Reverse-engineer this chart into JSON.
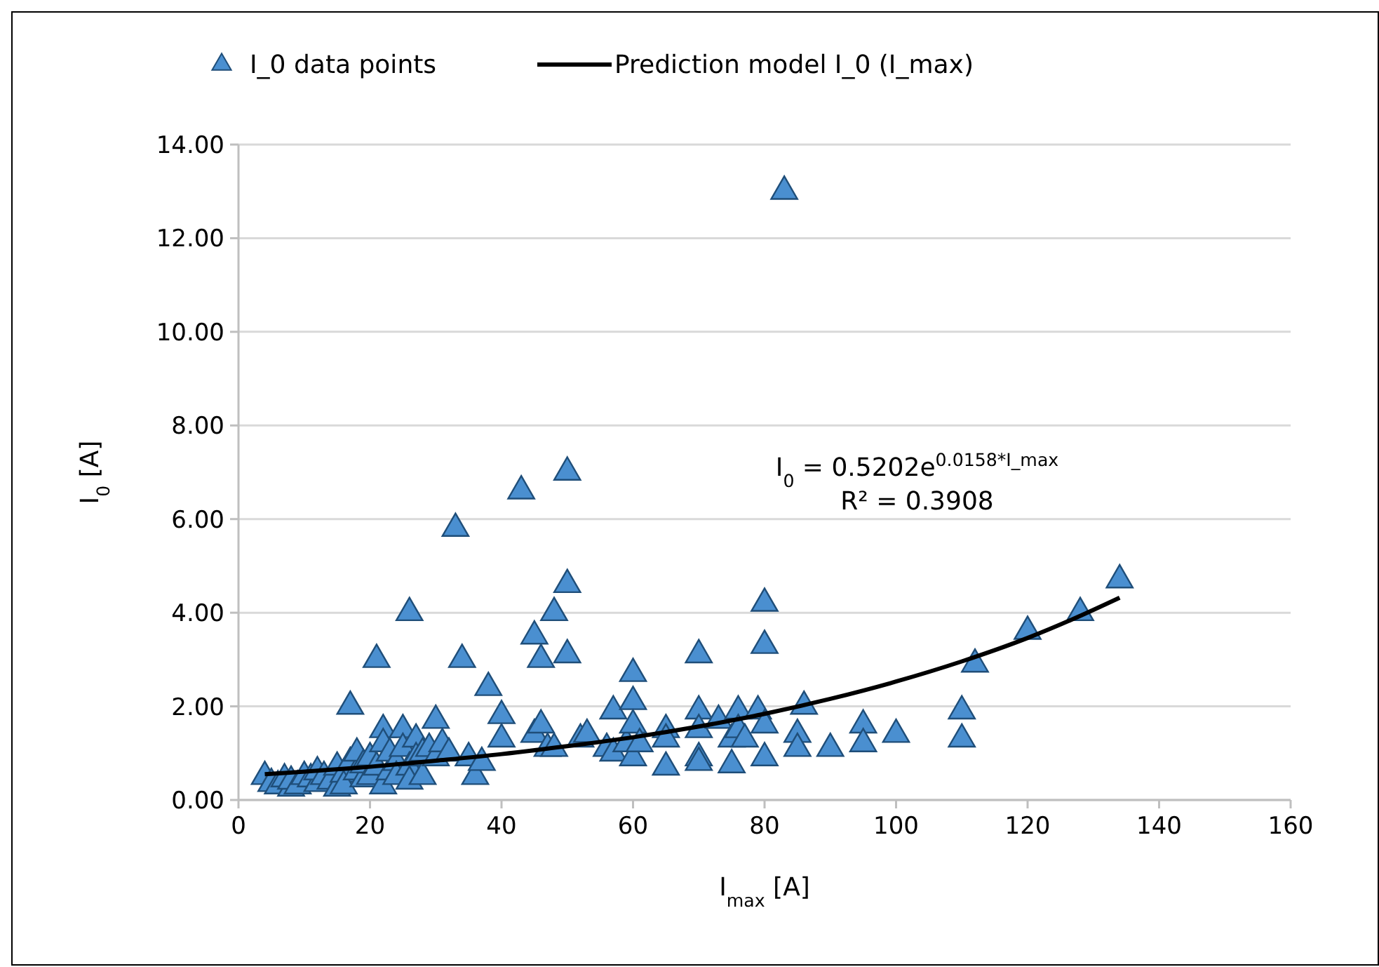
{
  "chart_data": {
    "type": "scatter",
    "xlabel": "I$_{max}$ [A]",
    "ylabel": "I$_{0}$ [A]",
    "xlim": [
      0,
      160
    ],
    "xticks": [
      0,
      20,
      40,
      60,
      80,
      100,
      120,
      140,
      160
    ],
    "ylim": [
      0,
      14
    ],
    "yticks": [
      {
        "value": 0,
        "label": "0.00"
      },
      {
        "value": 2,
        "label": "2.00"
      },
      {
        "value": 4,
        "label": "4.00"
      },
      {
        "value": 6,
        "label": "6.00"
      },
      {
        "value": 8,
        "label": "8.00"
      },
      {
        "value": 10,
        "label": "10.00"
      },
      {
        "value": 12,
        "label": "12.00"
      },
      {
        "value": 14,
        "label": "14.00"
      }
    ],
    "grid": "y",
    "legend": "top",
    "annotations": [
      "I$_{0}$ = 0.5202e$^{0.0158*I_max}$",
      "R² = 0.3908"
    ],
    "series": [
      {
        "name": "I_0 data points",
        "marker": "triangle",
        "color": "#4a8fd0",
        "x": [
          4,
          5,
          6,
          7,
          8,
          8,
          9,
          10,
          11,
          12,
          12,
          13,
          14,
          15,
          15,
          16,
          16,
          17,
          17,
          18,
          18,
          19,
          19,
          20,
          20,
          21,
          21,
          22,
          22,
          22,
          23,
          23,
          24,
          24,
          25,
          25,
          26,
          26,
          26,
          27,
          27,
          28,
          28,
          29,
          30,
          30,
          31,
          32,
          33,
          34,
          35,
          36,
          37,
          38,
          40,
          40,
          43,
          45,
          45,
          46,
          46,
          47,
          48,
          48,
          50,
          50,
          50,
          52,
          53,
          56,
          57,
          57,
          59,
          60,
          60,
          60,
          60,
          61,
          65,
          65,
          65,
          70,
          70,
          70,
          70,
          70,
          73,
          75,
          75,
          76,
          76,
          77,
          79,
          80,
          80,
          80,
          80,
          83,
          85,
          85,
          86,
          90,
          95,
          95,
          100,
          110,
          110,
          112,
          120,
          128,
          134
        ],
        "values": [
          0.5,
          0.35,
          0.3,
          0.45,
          0.25,
          0.4,
          0.3,
          0.5,
          0.45,
          0.35,
          0.6,
          0.5,
          0.4,
          0.25,
          0.7,
          0.55,
          0.3,
          0.8,
          2.0,
          0.6,
          1.0,
          0.45,
          0.75,
          0.5,
          0.9,
          3.0,
          0.7,
          1.5,
          0.3,
          1.2,
          0.6,
          1.0,
          0.8,
          0.5,
          1.5,
          1.1,
          4.0,
          0.7,
          0.4,
          1.3,
          0.9,
          0.5,
          1.0,
          1.1,
          1.7,
          0.9,
          1.2,
          1.0,
          5.8,
          3.0,
          0.9,
          0.5,
          0.8,
          2.4,
          1.8,
          1.3,
          6.6,
          3.5,
          1.4,
          3.0,
          1.6,
          1.1,
          4.0,
          1.1,
          7.0,
          4.6,
          3.1,
          1.3,
          1.4,
          1.1,
          1.9,
          1.0,
          1.2,
          2.7,
          2.1,
          1.6,
          0.9,
          1.2,
          1.5,
          0.7,
          1.3,
          3.1,
          1.9,
          1.5,
          0.9,
          0.8,
          1.7,
          1.3,
          0.75,
          1.9,
          1.5,
          1.3,
          1.9,
          4.2,
          3.3,
          1.6,
          0.9,
          13.0,
          1.4,
          1.1,
          2.0,
          1.1,
          1.6,
          1.2,
          1.4,
          1.9,
          1.3,
          2.9,
          3.6,
          4.0,
          4.7
        ]
      },
      {
        "name": "Prediction model I_0 (I_max)",
        "type": "line",
        "color": "#000000",
        "x": [
          4,
          20,
          30,
          40,
          50,
          60,
          70,
          80,
          90,
          100,
          110,
          120,
          127,
          134
        ],
        "values": [
          0.55,
          0.71,
          0.84,
          0.98,
          1.15,
          1.34,
          1.57,
          1.84,
          2.16,
          2.53,
          2.96,
          3.46,
          3.87,
          4.32
        ]
      }
    ]
  }
}
